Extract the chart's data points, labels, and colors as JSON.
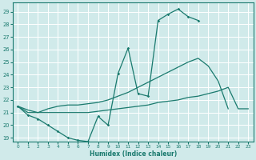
{
  "xlabel": "Humidex (Indice chaleur)",
  "background_color": "#d0eaea",
  "grid_color": "#b8d8d8",
  "line_color": "#1a7a6e",
  "xlim": [
    -0.5,
    23.5
  ],
  "ylim": [
    18.7,
    29.7
  ],
  "xticks": [
    0,
    1,
    2,
    3,
    4,
    5,
    6,
    7,
    8,
    9,
    10,
    11,
    12,
    13,
    14,
    15,
    16,
    17,
    18,
    19,
    20,
    21,
    22,
    23
  ],
  "yticks": [
    19,
    20,
    21,
    22,
    23,
    24,
    25,
    26,
    27,
    28,
    29
  ],
  "line1_x": [
    0,
    1,
    2,
    3,
    4,
    5,
    6,
    7,
    8,
    9,
    10,
    11,
    12,
    13,
    14,
    15,
    16,
    17,
    18,
    19,
    20,
    21,
    22,
    23
  ],
  "line1_y": [
    21.5,
    20.8,
    20.5,
    20.0,
    19.5,
    19.0,
    18.8,
    18.7,
    20.7,
    20.0,
    24.1,
    26.1,
    22.5,
    22.3,
    28.3,
    28.8,
    29.2,
    28.6,
    28.3,
    null,
    null,
    null,
    null,
    null
  ],
  "line2_x": [
    0,
    1,
    2,
    3,
    4,
    5,
    6,
    7,
    8,
    9,
    10,
    11,
    12,
    13,
    14,
    15,
    16,
    17,
    18,
    19,
    20,
    21,
    22,
    23
  ],
  "line2_y": [
    21.5,
    21.0,
    21.0,
    21.3,
    21.5,
    21.6,
    21.6,
    21.7,
    21.8,
    22.0,
    22.3,
    22.6,
    23.0,
    23.4,
    23.8,
    24.2,
    24.6,
    25.0,
    25.3,
    24.7,
    23.5,
    21.3,
    null,
    null
  ],
  "line3_x": [
    0,
    1,
    2,
    3,
    4,
    5,
    6,
    7,
    8,
    9,
    10,
    11,
    12,
    13,
    14,
    15,
    16,
    17,
    18,
    19,
    20,
    21,
    22,
    23
  ],
  "line3_y": [
    21.5,
    21.2,
    21.0,
    21.0,
    21.0,
    21.0,
    21.0,
    21.0,
    21.1,
    21.2,
    21.3,
    21.4,
    21.5,
    21.6,
    21.8,
    21.9,
    22.0,
    22.2,
    22.3,
    22.5,
    22.7,
    23.0,
    21.3,
    21.3
  ]
}
